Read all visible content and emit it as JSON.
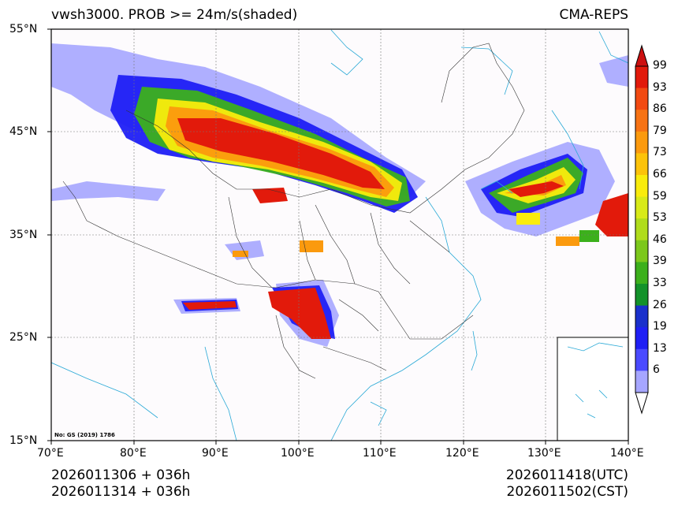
{
  "title_left": "vwsh3000. PROB >= 24m/s(shaded)",
  "title_right": "CMA-REPS",
  "lat_labels": [
    "55°N",
    "45°N",
    "35°N",
    "25°N",
    "15°N"
  ],
  "lon_labels": [
    "70°E",
    "80°E",
    "90°E",
    "100°E",
    "110°E",
    "120°E",
    "130°E",
    "140°E"
  ],
  "map_note": "No: GS (2019) 1786",
  "colorbar": {
    "labels": [
      "99",
      "93",
      "86",
      "79",
      "73",
      "66",
      "59",
      "53",
      "46",
      "39",
      "33",
      "26",
      "19",
      "13",
      "6"
    ],
    "colors": [
      "#e21a0b",
      "#f24a12",
      "#f77314",
      "#fb9a0e",
      "#fcc30a",
      "#f9ec0c",
      "#d8ea18",
      "#b0dc1c",
      "#7cc81c",
      "#3cb01c",
      "#13922a",
      "#1a30cc",
      "#1f1ff5",
      "#4a4aff",
      "#a6a6ff"
    ],
    "top_arrow_color": "#cc1010",
    "bottom_arrow_color": "#ffffff"
  },
  "init_time_utc": "2026011306  +  036h",
  "init_time_cst": "2026011314  +  036h",
  "valid_time_utc": "2026011418(UTC)",
  "valid_time_cst": "2026011502(CST)"
}
